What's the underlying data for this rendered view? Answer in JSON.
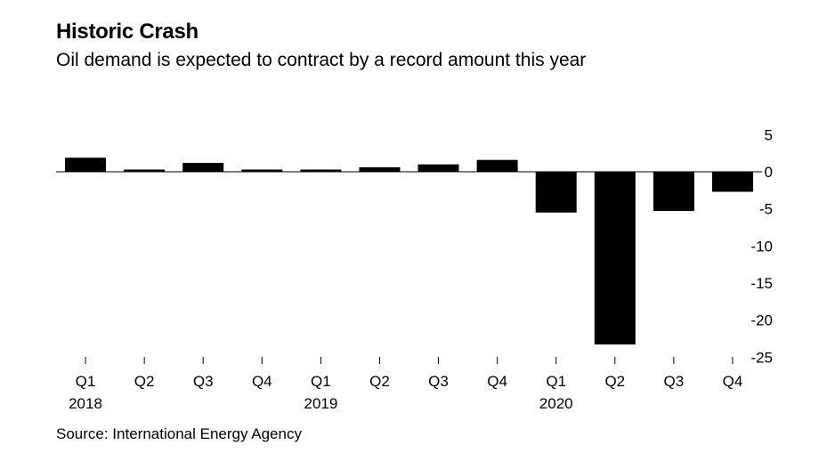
{
  "title": "Historic Crash",
  "subtitle": "Oil demand is expected to contract by a record amount this year",
  "source": "Source: International Energy Agency",
  "colors": {
    "bar": "#000000",
    "axis": "#000000",
    "background": "#ffffff"
  },
  "chart_data": {
    "type": "bar",
    "categories": [
      "Q1",
      "Q2",
      "Q3",
      "Q4",
      "Q1",
      "Q2",
      "Q3",
      "Q4",
      "Q1",
      "Q2",
      "Q3",
      "Q4"
    ],
    "year_labels": [
      "2018",
      "",
      "",
      "",
      "2019",
      "",
      "",
      "",
      "2020",
      "",
      "",
      ""
    ],
    "values": [
      1.9,
      0.3,
      1.2,
      0.3,
      0.3,
      0.6,
      1.0,
      1.6,
      -5.5,
      -23.3,
      -5.3,
      -2.7
    ],
    "y_ticks": [
      5,
      0,
      -5,
      -10,
      -15,
      -20,
      -25
    ],
    "ylim": [
      -25.5,
      5
    ],
    "grid": false,
    "xlabel": "",
    "ylabel": ""
  }
}
